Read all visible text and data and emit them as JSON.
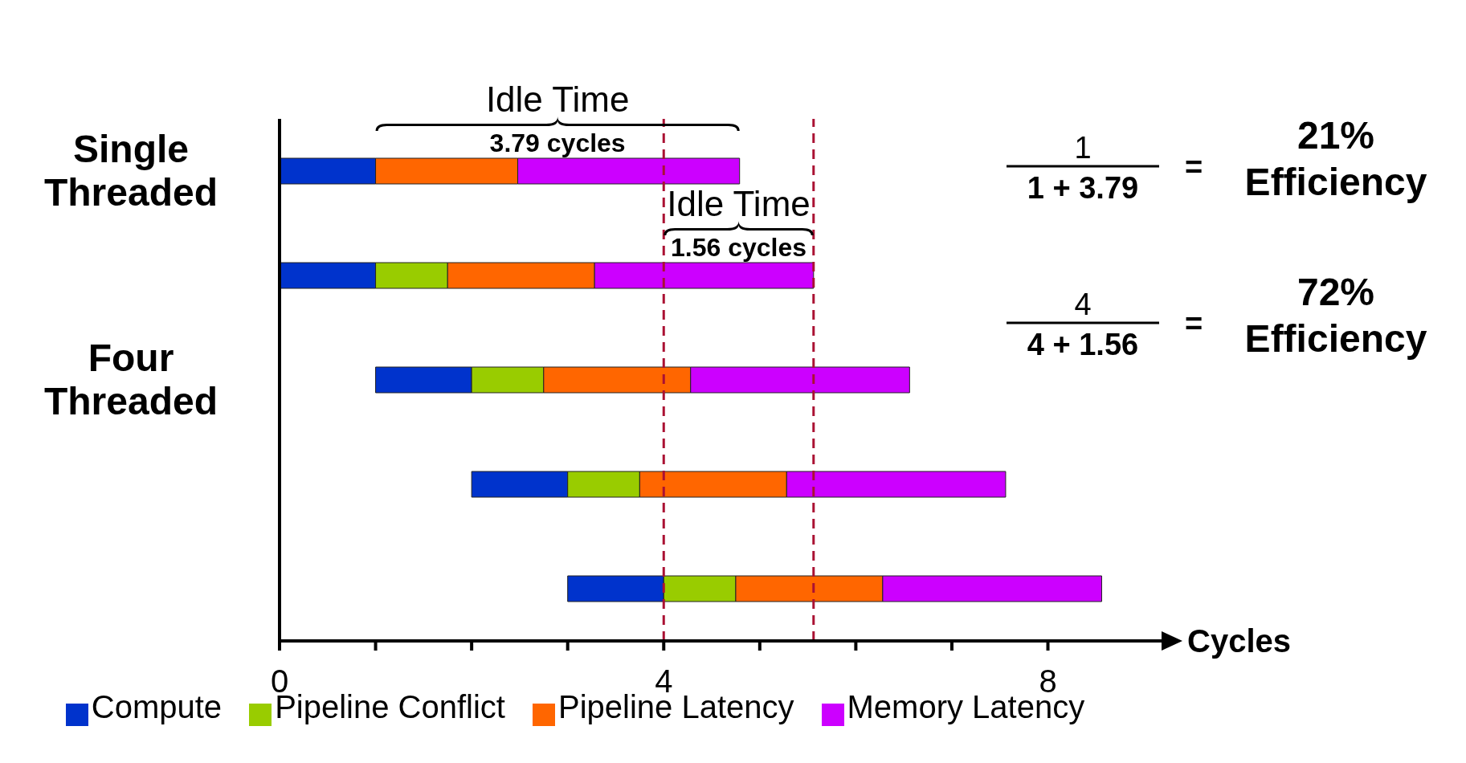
{
  "chart_data": {
    "type": "bar",
    "orientation": "horizontal",
    "categories": [
      "Single Threaded",
      null,
      "Four Threaded",
      null,
      null
    ],
    "series": [
      {
        "name": "Compute",
        "color": "#0033cc",
        "base": [
          0,
          0,
          1,
          2,
          3
        ],
        "values": [
          1,
          1,
          1,
          1,
          1
        ]
      },
      {
        "name": "Pipeline Conflict",
        "color": "#99cc00",
        "base": [
          null,
          1,
          2,
          3,
          4
        ],
        "values": [
          null,
          0.75,
          0.75,
          0.75,
          0.75
        ]
      },
      {
        "name": "Pipeline Latency",
        "color": "#ff6600",
        "base": [
          1,
          1.75,
          2.75,
          3.75,
          4.75
        ],
        "values": [
          1.48,
          1.53,
          1.53,
          1.53,
          1.53
        ]
      },
      {
        "name": "Memory Latency",
        "color": "#cc00ff",
        "base": [
          2.48,
          3.28,
          4.28,
          5.28,
          6.28
        ],
        "values": [
          2.31,
          2.28,
          2.28,
          2.28,
          2.28
        ]
      }
    ],
    "xlabel": "Cycles",
    "xlim": [
      0,
      9.2
    ],
    "xticks": [
      0,
      {
        "value": 1,
        "label": null
      },
      {
        "value": 2,
        "label": null
      },
      {
        "value": 3,
        "label": null
      },
      4,
      {
        "value": 5,
        "label": null
      },
      {
        "value": 6,
        "label": null
      },
      {
        "value": 7,
        "label": null
      },
      8
    ],
    "ref_lines": [
      {
        "axis": "x",
        "value": 4,
        "color": "#aa1133",
        "line_style": "dashed"
      },
      {
        "axis": "x",
        "value": 5.56,
        "color": "#aa1133",
        "line_style": "dashed"
      }
    ],
    "annotations": [
      "Idle Time",
      "3.79 cycles",
      "Idle Time",
      "1.56 cycles",
      "1",
      "1 + 3.79",
      "=",
      "21% Efficiency",
      "4",
      "4 + 1.56",
      "=",
      "72% Efficiency"
    ],
    "legend": "bottom",
    "grid": false
  }
}
